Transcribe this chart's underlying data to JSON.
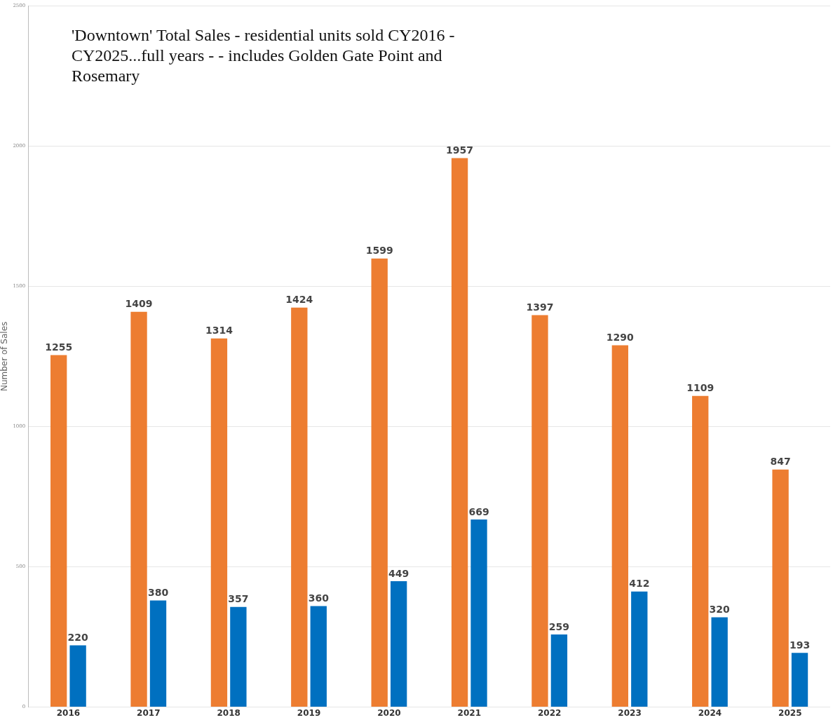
{
  "chart_data": {
    "type": "bar",
    "title": "'Downtown' Total Sales - residential units sold CY2016 -CY2025...full years - - includes Golden Gate Point and Rosemary",
    "ylabel": "Number of Sales",
    "categories": [
      "2016",
      "2017",
      "2018",
      "2019",
      "2020",
      "2021",
      "2022",
      "2023",
      "2024",
      "2025"
    ],
    "series": [
      {
        "color": "#ed7d31",
        "values": [
          1255,
          1409,
          1314,
          1424,
          1599,
          1957,
          1397,
          1290,
          1109,
          847
        ]
      },
      {
        "color": "#0070c0",
        "values": [
          220,
          380,
          357,
          360,
          449,
          669,
          259,
          412,
          320,
          193
        ]
      }
    ],
    "ylim": [
      0,
      2500
    ],
    "yticks": [
      0,
      500,
      1000,
      1500,
      2000,
      2500
    ],
    "grid": "y",
    "legend": false,
    "data_labels": true
  }
}
